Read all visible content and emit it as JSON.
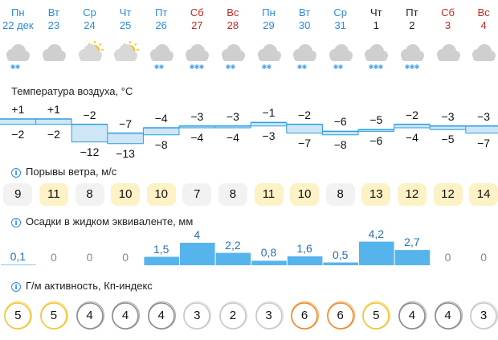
{
  "days": [
    {
      "dow": "Пн",
      "date": "22 дек",
      "weekend": false,
      "icon": "cloud-snow-icon",
      "snow": 2,
      "sun": false,
      "tmax": "+1",
      "tmin": "−2",
      "gust": "9",
      "gust_level": "low",
      "precip": "0,1",
      "precip_mm": 0.1,
      "kp": "5",
      "kp_level": "yellow"
    },
    {
      "dow": "Вт",
      "date": "23",
      "weekend": false,
      "icon": "cloud-icon",
      "snow": 0,
      "sun": false,
      "tmax": "+1",
      "tmin": "−2",
      "gust": "11",
      "gust_level": "med",
      "precip": "0",
      "precip_mm": 0,
      "kp": "5",
      "kp_level": "yellow"
    },
    {
      "dow": "Ср",
      "date": "24",
      "weekend": false,
      "icon": "partly-sunny-icon",
      "snow": 0,
      "sun": true,
      "tmax": "−2",
      "tmin": "−12",
      "gust": "8",
      "gust_level": "low",
      "precip": "0",
      "precip_mm": 0,
      "kp": "4",
      "kp_level": "gray"
    },
    {
      "dow": "Чт",
      "date": "25",
      "weekend": false,
      "icon": "partly-sunny-icon",
      "snow": 0,
      "sun": true,
      "tmax": "−7",
      "tmin": "−13",
      "gust": "10",
      "gust_level": "med",
      "precip": "0",
      "precip_mm": 0,
      "kp": "4",
      "kp_level": "gray"
    },
    {
      "dow": "Пт",
      "date": "26",
      "weekend": false,
      "icon": "cloud-snow-icon",
      "snow": 2,
      "sun": false,
      "tmax": "−4",
      "tmin": "−8",
      "gust": "10",
      "gust_level": "med",
      "precip": "1,5",
      "precip_mm": 1.5,
      "kp": "4",
      "kp_level": "gray"
    },
    {
      "dow": "Сб",
      "date": "27",
      "weekend": true,
      "icon": "cloud-snow-icon",
      "snow": 3,
      "sun": false,
      "tmax": "−3",
      "tmin": "−4",
      "gust": "7",
      "gust_level": "low",
      "precip": "4",
      "precip_mm": 4,
      "kp": "3",
      "kp_level": "light"
    },
    {
      "dow": "Вс",
      "date": "28",
      "weekend": true,
      "icon": "cloud-snow-icon",
      "snow": 2,
      "sun": false,
      "tmax": "−3",
      "tmin": "−4",
      "gust": "8",
      "gust_level": "low",
      "precip": "2,2",
      "precip_mm": 2.2,
      "kp": "2",
      "kp_level": "light"
    },
    {
      "dow": "Пн",
      "date": "29",
      "weekend": false,
      "icon": "cloud-snow-icon",
      "snow": 2,
      "sun": false,
      "tmax": "−1",
      "tmin": "−3",
      "gust": "11",
      "gust_level": "med",
      "precip": "0,8",
      "precip_mm": 0.8,
      "kp": "3",
      "kp_level": "light"
    },
    {
      "dow": "Вт",
      "date": "30",
      "weekend": false,
      "icon": "cloud-snow-icon",
      "snow": 2,
      "sun": false,
      "tmax": "−2",
      "tmin": "−7",
      "gust": "10",
      "gust_level": "med",
      "precip": "1,6",
      "precip_mm": 1.6,
      "kp": "6",
      "kp_level": "orange"
    },
    {
      "dow": "Ср",
      "date": "31",
      "weekend": false,
      "icon": "cloud-snow-icon",
      "snow": 2,
      "sun": false,
      "tmax": "−6",
      "tmin": "−8",
      "gust": "8",
      "gust_level": "low",
      "precip": "0,5",
      "precip_mm": 0.5,
      "kp": "6",
      "kp_level": "orange"
    },
    {
      "dow": "Чт",
      "date": "1",
      "weekend": false,
      "icon": "cloud-snow-icon",
      "snow": 3,
      "sun": false,
      "tmax": "−5",
      "tmin": "−6",
      "gust": "13",
      "gust_level": "med",
      "precip": "4,2",
      "precip_mm": 4.2,
      "kp": "5",
      "kp_level": "yellow"
    },
    {
      "dow": "Пт",
      "date": "2",
      "weekend": false,
      "icon": "cloud-snow-icon",
      "snow": 3,
      "sun": false,
      "tmax": "−2",
      "tmin": "−4",
      "gust": "12",
      "gust_level": "med",
      "precip": "2,7",
      "precip_mm": 2.7,
      "kp": "4",
      "kp_level": "gray"
    },
    {
      "dow": "Сб",
      "date": "3",
      "weekend": true,
      "icon": "cloud-icon",
      "snow": 0,
      "sun": false,
      "tmax": "−3",
      "tmin": "−5",
      "gust": "12",
      "gust_level": "med",
      "precip": "0",
      "precip_mm": 0,
      "kp": "4",
      "kp_level": "gray"
    },
    {
      "dow": "Вс",
      "date": "4",
      "weekend": true,
      "icon": "cloud-icon",
      "snow": 0,
      "sun": false,
      "tmax": "−3",
      "tmin": "−7",
      "gust": "14",
      "gust_level": "med",
      "precip": "0",
      "precip_mm": 0,
      "kp": "3",
      "kp_level": "light"
    }
  ],
  "sections": {
    "temperature": "Температура воздуха, °C",
    "gusts": "Порывы ветра, м/с",
    "precip": "Осадки в жидком эквиваленте, мм",
    "kp": "Г/м активность, Кп-индекс"
  },
  "colors": {
    "weekday": "#2a8ae0",
    "weekend": "#c62828",
    "today": "#222222",
    "temp_fill": "#cfe6f7",
    "temp_line": "#2a9fe0",
    "precip_fill": "#56b4ec",
    "gust_low": "#f2f2f2",
    "gust_med": "#fdf1c6",
    "kp_yellow": "#f4c430",
    "kp_orange": "#f08a24",
    "kp_gray": "#8c8c8c",
    "kp_light": "#c8c8c8"
  }
}
